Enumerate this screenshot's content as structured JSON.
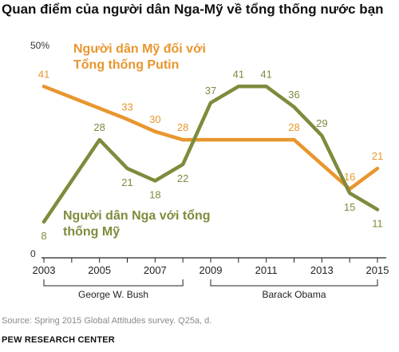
{
  "title": "Quan điểm của người dân Nga-Mỹ về tổng thống nước bạn",
  "source": "Source: Spring 2015 Global Attitudes survey. Q25a, d.",
  "brand": "PEW RESEARCH CENTER",
  "colors": {
    "orange": "#E8962E",
    "green": "#7D8C3C",
    "axis": "#222222",
    "bracket": "#222222"
  },
  "chart_data": {
    "type": "line",
    "title": "Quan điểm của người dân Nga-Mỹ về tổng thống nước bạn",
    "y_top_label": "50%",
    "y_zero_label": "0",
    "ylim": [
      0,
      50
    ],
    "xlim": [
      2003,
      2015
    ],
    "x_tick_labels": [
      "2003",
      "2005",
      "2007",
      "2009",
      "2011",
      "2013",
      "2015"
    ],
    "grid": false,
    "series": [
      {
        "name_lines": [
          "Người dân Mỹ đối với",
          "Tổng thống Putin"
        ],
        "color": "orange",
        "points": [
          {
            "x": 2003,
            "y": 41
          },
          {
            "x": 2006,
            "y": 33
          },
          {
            "x": 2007,
            "y": 30
          },
          {
            "x": 2008,
            "y": 28
          },
          {
            "x": 2012,
            "y": 28
          },
          {
            "x": 2014,
            "y": 16
          },
          {
            "x": 2015,
            "y": 21
          }
        ]
      },
      {
        "name_lines": [
          "Người dân Nga với tổng",
          "thống Mỹ"
        ],
        "color": "green",
        "points": [
          {
            "x": 2003,
            "y": 8
          },
          {
            "x": 2005,
            "y": 28
          },
          {
            "x": 2006,
            "y": 21
          },
          {
            "x": 2007,
            "y": 18
          },
          {
            "x": 2008,
            "y": 22
          },
          {
            "x": 2009,
            "y": 37
          },
          {
            "x": 2010,
            "y": 41
          },
          {
            "x": 2011,
            "y": 41
          },
          {
            "x": 2012,
            "y": 36
          },
          {
            "x": 2013,
            "y": 29
          },
          {
            "x": 2014,
            "y": 15
          },
          {
            "x": 2015,
            "y": 11
          }
        ]
      }
    ],
    "presidencies": [
      {
        "label": "George W. Bush",
        "from": 2003,
        "to": 2008
      },
      {
        "label": "Barack Obama",
        "from": 2009,
        "to": 2015
      }
    ]
  }
}
